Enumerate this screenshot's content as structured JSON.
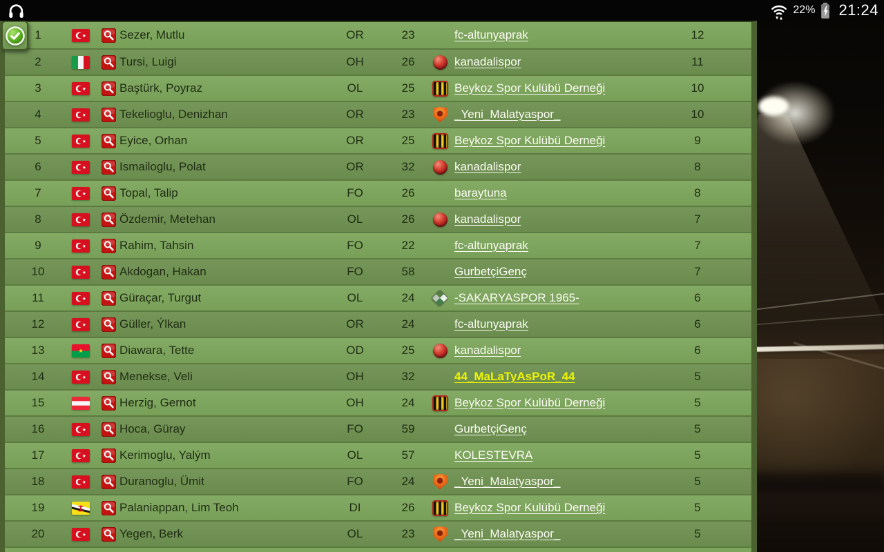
{
  "status_bar": {
    "left_icon": "headphones",
    "wifi_icon": "wifi-data-transfer",
    "battery_percent": "22%",
    "battery_icon": "battery-charging",
    "time": "21:24"
  },
  "corner_tab": {
    "icon": "check-circle"
  },
  "colors": {
    "row_light": "#7da65c",
    "row_dark": "#6e9150",
    "row_divider": "#5b7b40",
    "panel_border": "#4b6130",
    "link_text": "#fbfbf3",
    "highlight_link": "#eef406",
    "dark_text": "#202d14",
    "statusbar_bg": "#050505"
  },
  "table": {
    "columns": [
      "rank",
      "nation-flag",
      "search",
      "player-name",
      "position",
      "age",
      "club",
      "value"
    ],
    "rows": [
      {
        "rank": "1",
        "flag": "tr",
        "name": "Sezer, Mutlu",
        "position": "OR",
        "age": "23",
        "club": "fc-altunyaprak",
        "logo": "none",
        "highlight": false,
        "value": "12"
      },
      {
        "rank": "2",
        "flag": "it",
        "name": "Tursi, Luigi",
        "position": "OH",
        "age": "26",
        "club": "kanadalispor",
        "logo": "ball",
        "highlight": false,
        "value": "11"
      },
      {
        "rank": "3",
        "flag": "tr",
        "name": "Baştürk, Poyraz",
        "position": "OL",
        "age": "25",
        "club": "Beykoz Spor Kulübü Derneği",
        "logo": "beykoz",
        "highlight": false,
        "value": "10"
      },
      {
        "rank": "4",
        "flag": "tr",
        "name": "Tekelioglu, Denizhan",
        "position": "OR",
        "age": "23",
        "club": "_Yeni_Malatyaspor_",
        "logo": "malatya",
        "highlight": false,
        "value": "10"
      },
      {
        "rank": "5",
        "flag": "tr",
        "name": "Eyice, Orhan",
        "position": "OR",
        "age": "25",
        "club": "Beykoz Spor Kulübü Derneği",
        "logo": "beykoz",
        "highlight": false,
        "value": "9"
      },
      {
        "rank": "6",
        "flag": "tr",
        "name": "Ismailoglu, Polat",
        "position": "OR",
        "age": "32",
        "club": "kanadalispor",
        "logo": "ball",
        "highlight": false,
        "value": "8"
      },
      {
        "rank": "7",
        "flag": "tr",
        "name": "Topal, Talip",
        "position": "FO",
        "age": "26",
        "club": "baraytuna",
        "logo": "none",
        "highlight": false,
        "value": "8"
      },
      {
        "rank": "8",
        "flag": "tr",
        "name": "Özdemir, Metehan",
        "position": "OL",
        "age": "26",
        "club": "kanadalispor",
        "logo": "ball",
        "highlight": false,
        "value": "7"
      },
      {
        "rank": "9",
        "flag": "tr",
        "name": "Rahim, Tahsin",
        "position": "FO",
        "age": "22",
        "club": "fc-altunyaprak",
        "logo": "none",
        "highlight": false,
        "value": "7"
      },
      {
        "rank": "10",
        "flag": "tr",
        "name": "Akdogan, Hakan",
        "position": "FO",
        "age": "58",
        "club": "GurbetçiGenç",
        "logo": "none",
        "highlight": false,
        "value": "7"
      },
      {
        "rank": "11",
        "flag": "tr",
        "name": "Güraçar, Turgut",
        "position": "OL",
        "age": "24",
        "club": "-SAKARYASPOR 1965-",
        "logo": "sakarya",
        "highlight": false,
        "value": "6"
      },
      {
        "rank": "12",
        "flag": "tr",
        "name": "Güller, Ýlkan",
        "position": "OR",
        "age": "24",
        "club": "fc-altunyaprak",
        "logo": "none",
        "highlight": false,
        "value": "6"
      },
      {
        "rank": "13",
        "flag": "bf",
        "name": "Diawara, Tette",
        "position": "OD",
        "age": "25",
        "club": "kanadalispor",
        "logo": "ball",
        "highlight": false,
        "value": "6"
      },
      {
        "rank": "14",
        "flag": "tr",
        "name": "Menekse, Veli",
        "position": "OH",
        "age": "32",
        "club": "44_MaLaTyAsPoR_44",
        "logo": "none",
        "highlight": true,
        "value": "5"
      },
      {
        "rank": "15",
        "flag": "at",
        "name": "Herzig, Gernot",
        "position": "OH",
        "age": "24",
        "club": "Beykoz Spor Kulübü Derneği",
        "logo": "beykoz",
        "highlight": false,
        "value": "5"
      },
      {
        "rank": "16",
        "flag": "tr",
        "name": "Hoca, Güray",
        "position": "FO",
        "age": "59",
        "club": "GurbetçiGenç",
        "logo": "none",
        "highlight": false,
        "value": "5"
      },
      {
        "rank": "17",
        "flag": "tr",
        "name": "Kerimoglu, Yalým",
        "position": "OL",
        "age": "57",
        "club": "KOLESTEVRA",
        "logo": "none",
        "highlight": false,
        "value": "5"
      },
      {
        "rank": "18",
        "flag": "tr",
        "name": "Duranoglu, Ümit",
        "position": "FO",
        "age": "24",
        "club": "_Yeni_Malatyaspor_",
        "logo": "malatya",
        "highlight": false,
        "value": "5"
      },
      {
        "rank": "19",
        "flag": "bn",
        "name": "Palaniappan, Lim Teoh",
        "position": "DI",
        "age": "26",
        "club": "Beykoz Spor Kulübü Derneği",
        "logo": "beykoz",
        "highlight": false,
        "value": "5"
      },
      {
        "rank": "20",
        "flag": "tr",
        "name": "Yegen, Berk",
        "position": "OL",
        "age": "23",
        "club": "_Yeni_Malatyaspor_",
        "logo": "malatya",
        "highlight": false,
        "value": "5"
      }
    ]
  }
}
